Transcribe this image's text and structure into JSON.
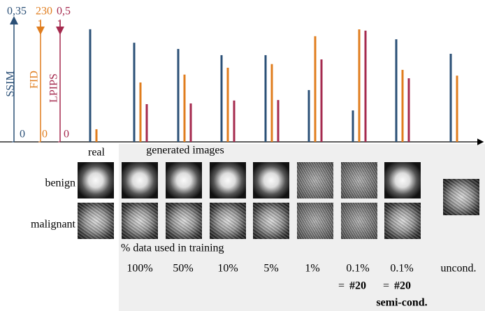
{
  "chart_data": {
    "type": "bar",
    "categories": [
      "real",
      "100%",
      "50%",
      "10%",
      "5%",
      "1%",
      "0.1%",
      "0.1%",
      "uncond."
    ],
    "y_label": "SSIM",
    "y2_label": "FID",
    "y3_label": "LPIPS",
    "ylim": [
      0,
      0.35
    ],
    "yticks": [
      0,
      {
        "value": 0.35,
        "label": "0,35"
      }
    ],
    "y2lim": [
      0,
      230
    ],
    "y2ticks": [
      0,
      230
    ],
    "y3lim": [
      0,
      0.5
    ],
    "y3ticks": [
      0,
      {
        "value": 0.5,
        "label": "0,5"
      }
    ],
    "series": [
      {
        "name": "SSIM",
        "color": "#2b5077",
        "axis": "y",
        "values": [
          0.326,
          0.287,
          0.269,
          0.251,
          0.251,
          0.15,
          0.091,
          0.297,
          0.255
        ]
      },
      {
        "name": "FID",
        "color": "#e07d1e",
        "axis": "y2",
        "values": [
          24,
          113,
          128,
          141,
          148,
          201,
          214,
          137,
          126
        ]
      },
      {
        "name": "LPIPS",
        "color": "#a52a4e",
        "axis": "y3",
        "values": [
          null,
          0.156,
          0.159,
          0.171,
          0.173,
          0.341,
          0.46,
          0.263,
          null
        ]
      }
    ]
  },
  "images": {
    "heading": "generated images",
    "rows": [
      "benign",
      "malignant"
    ],
    "caption": "% data used in training"
  },
  "notes": [
    {
      "eq": "=",
      "bold": "#20"
    },
    {
      "eq": "=",
      "bold": "#20"
    }
  ],
  "semi_cond": "semi-cond."
}
